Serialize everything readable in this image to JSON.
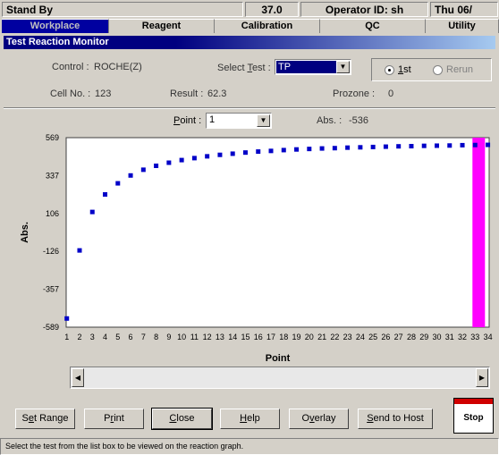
{
  "statusbar": {
    "state": "Stand By",
    "temp": "37.0",
    "operator": "Operator ID: sh",
    "date": "Thu 06/"
  },
  "tabs": [
    {
      "label": "Workplace",
      "active": true
    },
    {
      "label": "Reagent"
    },
    {
      "label": "Calibration"
    },
    {
      "label": "QC"
    },
    {
      "label": "Utility"
    }
  ],
  "panel": {
    "title": "Test Reaction Monitor"
  },
  "info": {
    "control_label": "Control :",
    "control_value": "ROCHE(Z)",
    "select_test_label": "Select Test :",
    "select_test_value": "TP",
    "radio_1st": "1st",
    "radio_rerun": "Rerun",
    "cell_label": "Cell No. :",
    "cell_value": "123",
    "result_label": "Result :",
    "result_value": "62.3",
    "prozone_label": "Prozone :",
    "prozone_value": "0",
    "point_label": "Point :",
    "point_value": "1",
    "abs_label": "Abs. :",
    "abs_value": "-536"
  },
  "chart_data": {
    "type": "scatter",
    "xlabel": "Point",
    "ylabel": "Abs.",
    "xlim": [
      1,
      34
    ],
    "ylim": [
      -589,
      569
    ],
    "yticks": [
      569,
      337,
      106,
      -126,
      -357,
      -589
    ],
    "xticks": [
      1,
      2,
      3,
      4,
      5,
      6,
      7,
      8,
      9,
      10,
      11,
      12,
      13,
      14,
      15,
      16,
      17,
      18,
      19,
      20,
      21,
      22,
      23,
      24,
      25,
      26,
      27,
      28,
      29,
      30,
      31,
      32,
      33,
      34
    ],
    "marker_color": "#0000c8",
    "highlight_color": "#ff00ff",
    "highlight_point": 33,
    "x": [
      1,
      2,
      3,
      4,
      5,
      6,
      7,
      8,
      9,
      10,
      11,
      12,
      13,
      14,
      15,
      16,
      17,
      18,
      19,
      20,
      21,
      22,
      23,
      24,
      25,
      26,
      27,
      28,
      29,
      30,
      31,
      32,
      33,
      34
    ],
    "y": [
      -536,
      -120,
      115,
      222,
      290,
      338,
      373,
      397,
      416,
      432,
      444,
      455,
      464,
      471,
      478,
      484,
      488,
      493,
      497,
      500,
      503,
      505,
      508,
      510,
      512,
      514,
      516,
      517,
      519,
      520,
      521,
      523,
      524,
      525
    ]
  },
  "buttons": {
    "set_range": "Set Range",
    "print": "Print",
    "close": "Close",
    "help": "Help",
    "overlay": "Overlay",
    "send_host": "Send to Host",
    "stop": "Stop"
  },
  "status_message": "Select the test from the list box to be viewed on the reaction graph."
}
